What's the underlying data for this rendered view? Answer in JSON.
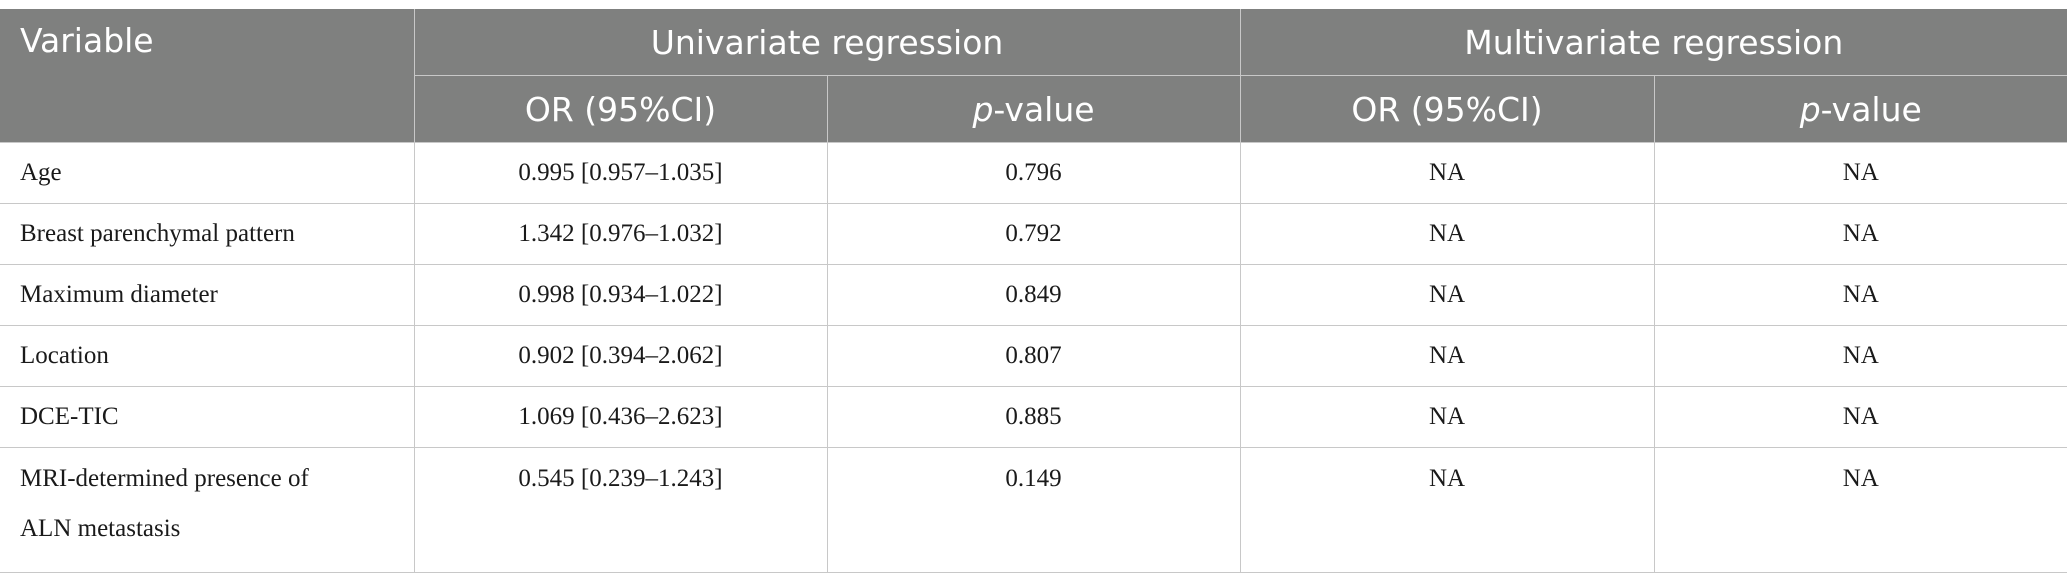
{
  "headers": {
    "variable": "Variable",
    "univariate": "Univariate regression",
    "multivariate": "Multivariate regression",
    "or_ci": "OR (95%CI)",
    "p_prefix": "p",
    "p_suffix": "-value"
  },
  "rows": [
    {
      "variable": "Age",
      "uni_or": "0.995 [0.957–1.035]",
      "uni_p": "0.796",
      "multi_or": "NA",
      "multi_p": "NA"
    },
    {
      "variable": "Breast parenchymal pattern",
      "uni_or": "1.342 [0.976–1.032]",
      "uni_p": "0.792",
      "multi_or": "NA",
      "multi_p": "NA"
    },
    {
      "variable": "Maximum diameter",
      "uni_or": "0.998 [0.934–1.022]",
      "uni_p": "0.849",
      "multi_or": "NA",
      "multi_p": "NA"
    },
    {
      "variable": "Location",
      "uni_or": "0.902 [0.394–2.062]",
      "uni_p": "0.807",
      "multi_or": "NA",
      "multi_p": "NA"
    },
    {
      "variable": "DCE-TIC",
      "uni_or": "1.069 [0.436–2.623]",
      "uni_p": "0.885",
      "multi_or": "NA",
      "multi_p": "NA"
    },
    {
      "variable_line1": "MRI-determined presence of",
      "variable_line2": "ALN metastasis",
      "uni_or": "0.545 [0.239–1.243]",
      "uni_p": "0.149",
      "multi_or": "NA",
      "multi_p": "NA"
    }
  ],
  "colors": {
    "header_bg": "#7f807f",
    "header_text": "#ffffff",
    "grid": "#c8c8c8"
  }
}
